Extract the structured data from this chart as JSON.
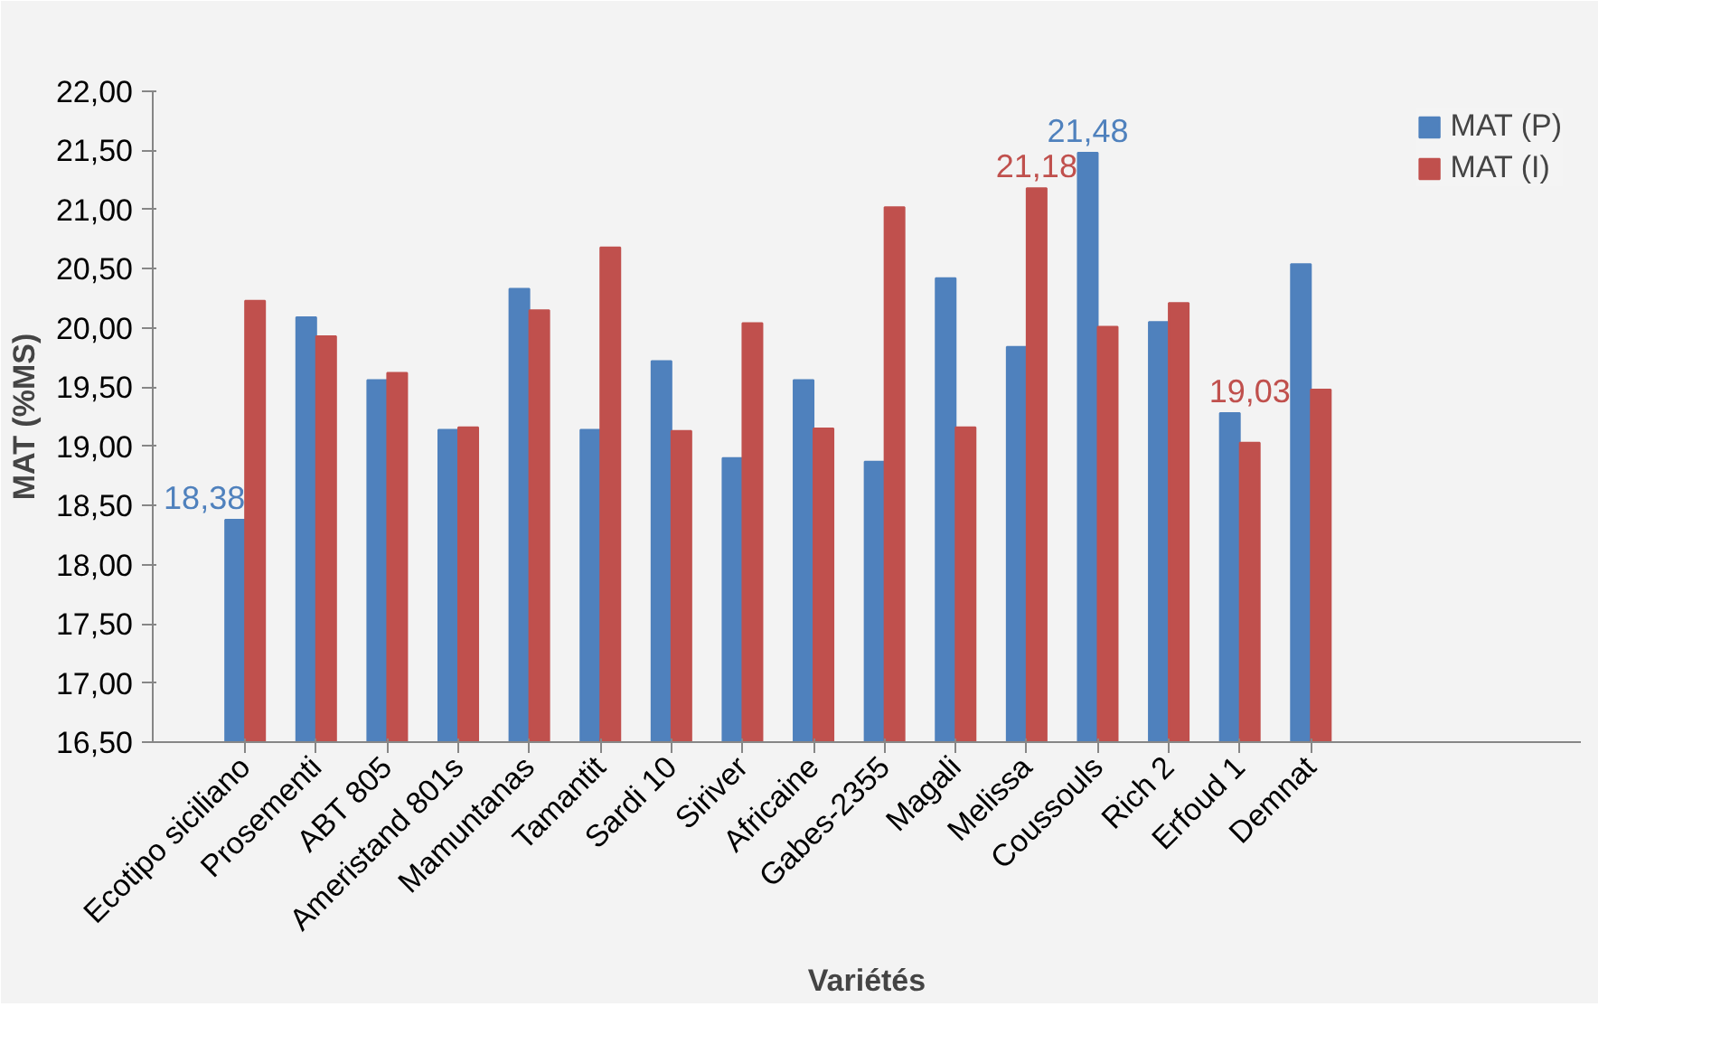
{
  "chart_data": {
    "type": "bar",
    "xlabel": "Variétés",
    "ylabel": "MAT (%MS)",
    "categories": [
      "Ecotipo siciliano",
      "Prosementi",
      "ABT 805",
      "Ameristand 801s",
      "Mamuntanas",
      "Tamantit",
      "Sardi 10",
      "Siriver",
      "Africaine",
      "Gabes-2355",
      "Magali",
      "Melissa",
      "Coussouls",
      "Rich 2",
      "Erfoud 1",
      "Demnat"
    ],
    "series": [
      {
        "name": "MAT (P)",
        "color": "#4f81bd",
        "values": [
          18.38,
          20.09,
          19.56,
          19.14,
          20.33,
          19.14,
          19.72,
          18.9,
          19.56,
          18.87,
          20.42,
          19.84,
          21.48,
          20.05,
          19.28,
          20.54
        ],
        "value_labels": [
          "18,38",
          null,
          null,
          null,
          null,
          null,
          null,
          null,
          null,
          null,
          null,
          null,
          "21,48",
          null,
          null,
          null
        ]
      },
      {
        "name": "MAT (I)",
        "color": "#c0504d",
        "values": [
          20.23,
          19.93,
          19.62,
          19.16,
          20.15,
          20.68,
          19.13,
          20.04,
          19.15,
          21.02,
          19.16,
          21.18,
          20.01,
          20.21,
          19.03,
          19.48
        ],
        "value_labels": [
          null,
          null,
          null,
          null,
          null,
          null,
          null,
          null,
          null,
          null,
          null,
          "21,18",
          null,
          null,
          "19,03",
          null
        ]
      }
    ],
    "ylim": [
      16.5,
      22.0
    ],
    "yticks": [
      {
        "value": 16.5,
        "label": "16,50"
      },
      {
        "value": 17.0,
        "label": "17,00"
      },
      {
        "value": 17.5,
        "label": "17,50"
      },
      {
        "value": 18.0,
        "label": "18,00"
      },
      {
        "value": 18.5,
        "label": "18,50"
      },
      {
        "value": 19.0,
        "label": "19,00"
      },
      {
        "value": 19.5,
        "label": "19,50"
      },
      {
        "value": 20.0,
        "label": "20,00"
      },
      {
        "value": 20.5,
        "label": "20,50"
      },
      {
        "value": 21.0,
        "label": "21,00"
      },
      {
        "value": 21.5,
        "label": "21,50"
      },
      {
        "value": 22.0,
        "label": "22,00"
      }
    ],
    "grid": false,
    "legend": "top right"
  }
}
